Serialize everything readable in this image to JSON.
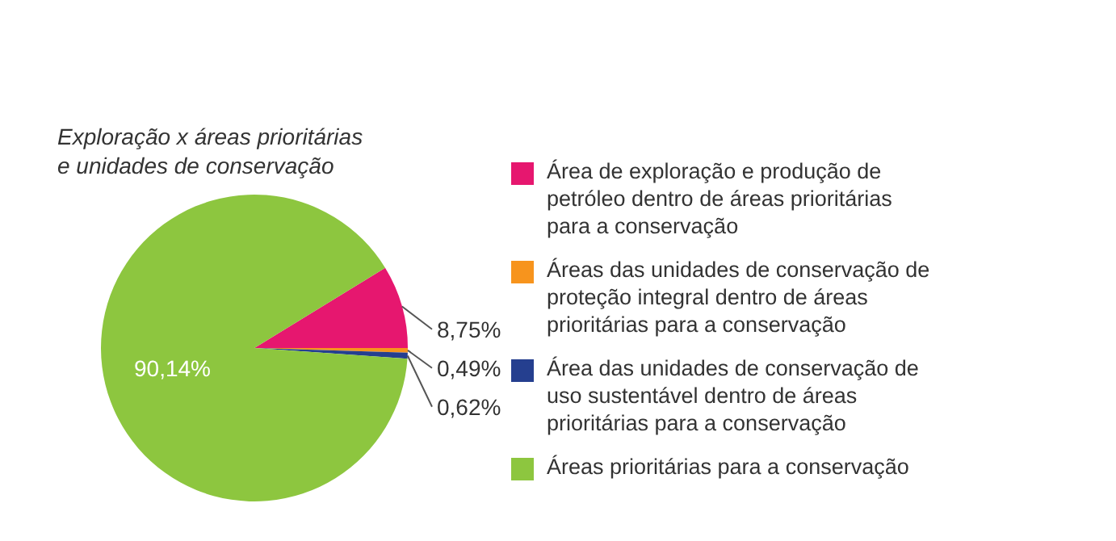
{
  "chart_data": {
    "type": "pie",
    "title": "Exploração x áreas prioritárias\ne unidades de conservação",
    "categories": [
      "Área de exploração e produção de petróleo dentro de áreas prioritárias para a conservação",
      "Áreas das unidades de conservação de proteção integral dentro de áreas prioritárias para a conservação",
      "Área das unidades de conservação de uso sustentável dentro de áreas prioritárias para a conservação",
      "Áreas prioritárias para a conservação"
    ],
    "values": [
      8.75,
      0.49,
      0.62,
      90.14
    ],
    "value_labels": [
      "8,75%",
      "0,49%",
      "0,62%",
      "90,14%"
    ],
    "colors": [
      "#e6176f",
      "#f7941d",
      "#253f8f",
      "#8dc63f"
    ],
    "legend": "right"
  }
}
